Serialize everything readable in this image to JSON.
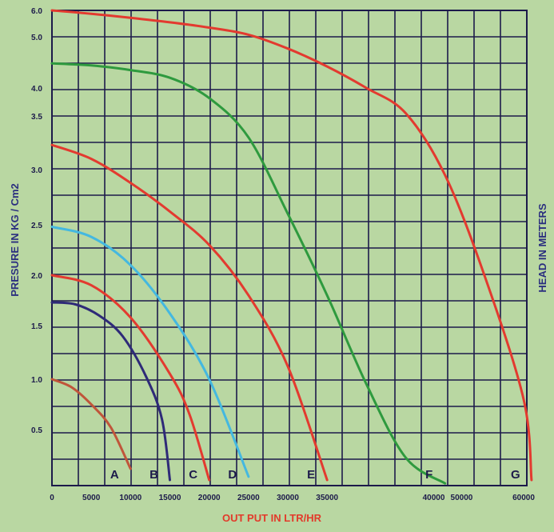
{
  "chart_data": {
    "type": "line",
    "xlabel": "OUT PUT IN LTR/HR",
    "ylabel": "PRESURE  IN KG / Cm2",
    "y2label": "HEAD IN METERS",
    "x_ticks": [
      "0",
      "5000",
      "10000",
      "15000",
      "20000",
      "25000",
      "30000",
      "35000",
      "40000",
      "50000",
      "60000"
    ],
    "y_ticks": [
      "6.0",
      "5.0",
      "4.0",
      "3.5",
      "3.0",
      "2.5",
      "2.0",
      "1.5",
      "1.0",
      "0.5"
    ],
    "grid": true,
    "series": [
      {
        "name": "A",
        "color": "#c0553a",
        "x": [
          0,
          2500,
          5000,
          7500,
          10000
        ],
        "y": [
          1.0,
          0.92,
          0.75,
          0.52,
          0.15
        ]
      },
      {
        "name": "B",
        "color": "#2e2a78",
        "x": [
          0,
          3000,
          6000,
          9000,
          12000,
          14000,
          15000
        ],
        "y": [
          1.73,
          1.71,
          1.6,
          1.4,
          1.02,
          0.6,
          0.05
        ]
      },
      {
        "name": "C",
        "color": "#e33a2f",
        "x": [
          0,
          5000,
          10000,
          15000,
          17500,
          20000
        ],
        "y": [
          2.0,
          1.9,
          1.58,
          1.05,
          0.65,
          0.05
        ]
      },
      {
        "name": "D",
        "color": "#44b8e0",
        "x": [
          0,
          5000,
          10000,
          15000,
          20000,
          25000
        ],
        "y": [
          2.48,
          2.38,
          2.1,
          1.62,
          1.0,
          0.08
        ]
      },
      {
        "name": "E",
        "color": "#e33a2f",
        "x": [
          0,
          5000,
          10000,
          15000,
          20000,
          25000,
          30000,
          35000
        ],
        "y": [
          3.23,
          3.1,
          2.88,
          2.62,
          2.3,
          1.8,
          1.12,
          0.05
        ]
      },
      {
        "name": "F",
        "color": "#2e9a3e",
        "x": [
          0,
          5000,
          10000,
          15000,
          20000,
          25000,
          30000,
          35000,
          40000,
          45000,
          50000
        ],
        "y": [
          4.48,
          4.44,
          4.35,
          4.2,
          3.82,
          3.3,
          2.6,
          1.8,
          0.95,
          0.25,
          0.02
        ]
      },
      {
        "name": "G",
        "color": "#e33a2f",
        "x": [
          0,
          5000,
          10000,
          15000,
          20000,
          25000,
          30000,
          35000,
          40000,
          45000,
          50000,
          55000,
          60000,
          61000
        ],
        "y": [
          6.0,
          5.87,
          5.72,
          5.55,
          5.35,
          5.08,
          4.77,
          4.42,
          4.0,
          3.55,
          2.95,
          2.0,
          0.8,
          0.05
        ]
      }
    ],
    "labels": [
      "A",
      "B",
      "C",
      "D",
      "E",
      "F",
      "G"
    ]
  }
}
